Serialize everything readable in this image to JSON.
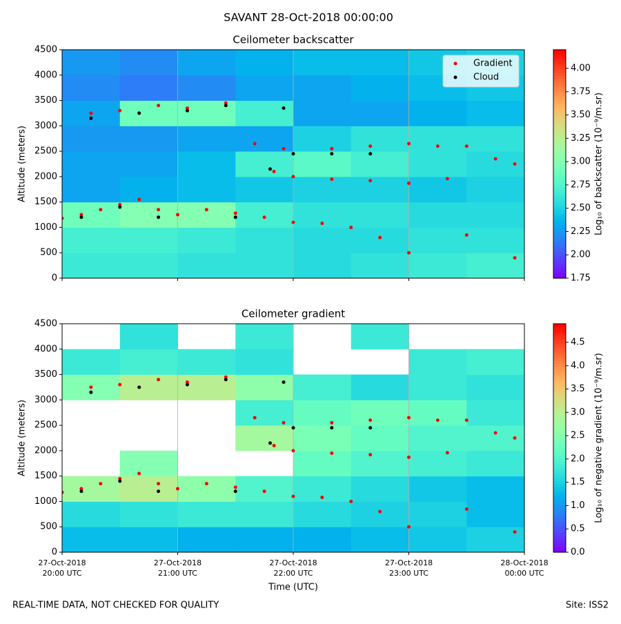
{
  "title": "SAVANT 28-Oct-2018 00:00:00",
  "footer_left": "REAL-TIME DATA, NOT CHECKED FOR QUALITY",
  "footer_right": "Site: ISS2",
  "chart_data": [
    {
      "type": "heatmap",
      "title": "Ceilometer backscatter",
      "y_label": "Altitude (meters)",
      "colorbar_label": "Log₁₀ of backscatter (10⁻⁹/m.sr)",
      "colormap": "rainbow",
      "xlim": [
        "2018-10-27T20:00",
        "2018-10-28T00:00"
      ],
      "ylim": [
        0,
        4500
      ],
      "yticks": [
        0,
        500,
        1000,
        1500,
        2000,
        2500,
        3000,
        3500,
        4000,
        4500
      ],
      "clim": [
        1.75,
        4.2
      ],
      "cticks": [
        1.75,
        {
          "value": 2,
          "label": "2.00"
        },
        2.25,
        {
          "value": 2.5,
          "label": "2.50"
        },
        2.75,
        {
          "value": 3,
          "label": "3.00"
        },
        3.25,
        {
          "value": 3.5,
          "label": "3.50"
        },
        3.75,
        {
          "value": 4,
          "label": "4.00"
        }
      ],
      "grid": "x",
      "legend": "upper right",
      "z": [
        [
          2.65,
          2.65,
          2.6,
          2.6,
          2.55,
          2.6,
          2.65,
          2.7
        ],
        [
          2.7,
          2.7,
          2.65,
          2.6,
          2.55,
          2.55,
          2.6,
          2.6
        ],
        [
          2.9,
          3.0,
          3.0,
          2.7,
          2.6,
          2.6,
          2.55,
          2.55
        ],
        [
          2.3,
          2.35,
          2.4,
          2.45,
          2.5,
          2.5,
          2.45,
          2.5
        ],
        [
          2.3,
          2.3,
          2.4,
          2.7,
          2.8,
          2.7,
          2.6,
          2.55
        ],
        [
          2.25,
          2.25,
          2.3,
          2.3,
          2.5,
          2.6,
          2.6,
          2.6
        ],
        [
          2.3,
          2.9,
          2.9,
          2.7,
          2.3,
          2.3,
          2.35,
          2.4
        ],
        [
          2.2,
          2.15,
          2.2,
          2.3,
          2.3,
          2.35,
          2.4,
          2.45
        ],
        [
          2.25,
          2.2,
          2.3,
          2.35,
          2.4,
          2.4,
          2.45,
          2.5
        ]
      ],
      "series": [
        {
          "name": "Gradient",
          "color": "#ff0000",
          "x": [
            "2018-10-27T20:00",
            "2018-10-27T20:10",
            "2018-10-27T20:20",
            "2018-10-27T20:30",
            "2018-10-27T20:40",
            "2018-10-27T20:50",
            "2018-10-27T21:00",
            "2018-10-27T21:15",
            "2018-10-27T21:30",
            "2018-10-27T21:45",
            "2018-10-27T22:00",
            "2018-10-27T22:15",
            "2018-10-27T22:30",
            "2018-10-27T22:45",
            "2018-10-27T23:00",
            "2018-10-27T23:30",
            "2018-10-27T23:55",
            "2018-10-27T20:15",
            "2018-10-27T20:30",
            "2018-10-27T20:50",
            "2018-10-27T21:05",
            "2018-10-27T21:25",
            "2018-10-27T21:40",
            "2018-10-27T21:50",
            "2018-10-27T22:00",
            "2018-10-27T22:20",
            "2018-10-27T22:40",
            "2018-10-27T23:00",
            "2018-10-27T23:20",
            "2018-10-27T21:55",
            "2018-10-27T22:20",
            "2018-10-27T22:40",
            "2018-10-27T23:00",
            "2018-10-27T23:15",
            "2018-10-27T23:30",
            "2018-10-27T23:45",
            "2018-10-27T23:55"
          ],
          "values": [
            1180,
            1250,
            1350,
            1450,
            1550,
            1350,
            1250,
            1350,
            1280,
            1200,
            1100,
            1080,
            1000,
            800,
            500,
            850,
            400,
            3250,
            3300,
            3400,
            3350,
            3450,
            2650,
            2100,
            2000,
            1950,
            1920,
            1870,
            1960,
            2550,
            2550,
            2600,
            2650,
            2600,
            2600,
            2350,
            2250
          ]
        },
        {
          "name": "Cloud",
          "color": "#000000",
          "x": [
            "2018-10-27T20:10",
            "2018-10-27T20:30",
            "2018-10-27T20:50",
            "2018-10-27T21:30",
            "2018-10-27T20:15",
            "2018-10-27T20:40",
            "2018-10-27T21:05",
            "2018-10-27T21:25",
            "2018-10-27T21:48",
            "2018-10-27T22:00",
            "2018-10-27T22:20",
            "2018-10-27T22:40",
            "2018-10-27T21:55"
          ],
          "values": [
            1200,
            1400,
            1200,
            1200,
            3150,
            3250,
            3300,
            3400,
            2150,
            2450,
            2450,
            2450,
            3350
          ]
        }
      ]
    },
    {
      "type": "heatmap",
      "title": "Ceilometer gradient",
      "y_label": "Altitude (meters)",
      "x_label": "Time (UTC)",
      "colorbar_label": "Log₁₀ of negative gradient (10⁻⁹/m.sr)",
      "colormap": "rainbow",
      "xlim": [
        "2018-10-27T20:00",
        "2018-10-28T00:00"
      ],
      "ylim": [
        0,
        4500
      ],
      "xticks": [
        {
          "value": "2018-10-27T20:00",
          "label": [
            "27-Oct-2018",
            "20:00 UTC"
          ]
        },
        {
          "value": "2018-10-27T21:00",
          "label": [
            "27-Oct-2018",
            "21:00 UTC"
          ]
        },
        {
          "value": "2018-10-27T22:00",
          "label": [
            "27-Oct-2018",
            "22:00 UTC"
          ]
        },
        {
          "value": "2018-10-27T23:00",
          "label": [
            "27-Oct-2018",
            "23:00 UTC"
          ]
        },
        {
          "value": "2018-10-28T00:00",
          "label": [
            "28-Oct-2018",
            "00:00 UTC"
          ]
        }
      ],
      "yticks": [
        0,
        500,
        1000,
        1500,
        2000,
        2500,
        3000,
        3500,
        4000,
        4500
      ],
      "clim": [
        0,
        4.9
      ],
      "cticks": [
        {
          "value": 0,
          "label": "0.0"
        },
        0.5,
        {
          "value": 1,
          "label": "1.0"
        },
        1.5,
        {
          "value": 2,
          "label": "2.0"
        },
        2.5,
        {
          "value": 3,
          "label": "3.0"
        },
        3.5,
        {
          "value": 4,
          "label": "4.0"
        },
        4.5
      ],
      "grid": "x",
      "z": [
        [
          1.3,
          1.3,
          1.2,
          1.2,
          1.2,
          1.3,
          1.4,
          1.5
        ],
        [
          1.6,
          1.7,
          1.8,
          1.8,
          1.6,
          1.5,
          1.5,
          1.3
        ],
        [
          2.8,
          3.0,
          2.6,
          2.0,
          1.8,
          1.6,
          1.4,
          1.3
        ],
        [
          null,
          2.5,
          null,
          null,
          2.2,
          2.0,
          1.9,
          1.8
        ],
        [
          null,
          null,
          null,
          2.8,
          2.4,
          2.2,
          2.0,
          2.0
        ],
        [
          null,
          null,
          null,
          1.9,
          2.2,
          2.3,
          2.2,
          1.8
        ],
        [
          2.5,
          3.0,
          3.0,
          2.6,
          1.9,
          1.6,
          1.8,
          1.7
        ],
        [
          1.8,
          1.9,
          1.8,
          1.7,
          null,
          null,
          1.8,
          1.9
        ],
        [
          null,
          1.7,
          null,
          1.8,
          null,
          1.8,
          null,
          null
        ]
      ],
      "series": [
        {
          "name": "Gradient",
          "color": "#ff0000",
          "x": [
            "2018-10-27T20:00",
            "2018-10-27T20:10",
            "2018-10-27T20:20",
            "2018-10-27T20:30",
            "2018-10-27T20:40",
            "2018-10-27T20:50",
            "2018-10-27T21:00",
            "2018-10-27T21:15",
            "2018-10-27T21:30",
            "2018-10-27T21:45",
            "2018-10-27T22:00",
            "2018-10-27T22:15",
            "2018-10-27T22:30",
            "2018-10-27T22:45",
            "2018-10-27T23:00",
            "2018-10-27T23:30",
            "2018-10-27T23:55",
            "2018-10-27T20:15",
            "2018-10-27T20:30",
            "2018-10-27T20:50",
            "2018-10-27T21:05",
            "2018-10-27T21:25",
            "2018-10-27T21:40",
            "2018-10-27T21:50",
            "2018-10-27T22:00",
            "2018-10-27T22:20",
            "2018-10-27T22:40",
            "2018-10-27T23:00",
            "2018-10-27T23:20",
            "2018-10-27T21:55",
            "2018-10-27T22:20",
            "2018-10-27T22:40",
            "2018-10-27T23:00",
            "2018-10-27T23:15",
            "2018-10-27T23:30",
            "2018-10-27T23:45",
            "2018-10-27T23:55"
          ],
          "values": [
            1180,
            1250,
            1350,
            1450,
            1550,
            1350,
            1250,
            1350,
            1280,
            1200,
            1100,
            1080,
            1000,
            800,
            500,
            850,
            400,
            3250,
            3300,
            3400,
            3350,
            3450,
            2650,
            2100,
            2000,
            1950,
            1920,
            1870,
            1960,
            2550,
            2550,
            2600,
            2650,
            2600,
            2600,
            2350,
            2250
          ]
        },
        {
          "name": "Cloud",
          "color": "#000000",
          "x": [
            "2018-10-27T20:10",
            "2018-10-27T20:30",
            "2018-10-27T20:50",
            "2018-10-27T21:30",
            "2018-10-27T20:15",
            "2018-10-27T20:40",
            "2018-10-27T21:05",
            "2018-10-27T21:25",
            "2018-10-27T21:48",
            "2018-10-27T22:00",
            "2018-10-27T22:20",
            "2018-10-27T22:40",
            "2018-10-27T21:55"
          ],
          "values": [
            1200,
            1400,
            1200,
            1200,
            3150,
            3250,
            3300,
            3400,
            2150,
            2450,
            2450,
            2450,
            3350
          ]
        }
      ]
    }
  ]
}
